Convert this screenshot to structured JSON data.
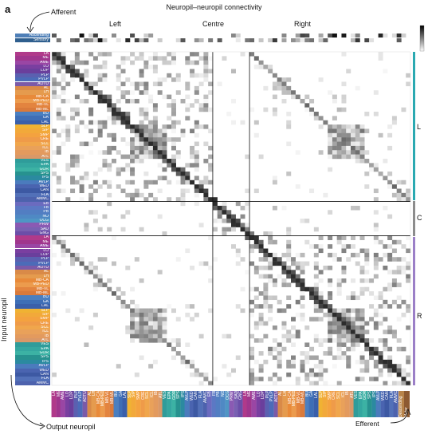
{
  "panel_letter": "a",
  "title": "Neuropil–neuropil connectivity",
  "sections": {
    "left": "Left",
    "centre": "Centre",
    "right": "Right"
  },
  "afferent": "Afferent",
  "efferent": "Efferent",
  "input_axis": "Input neuropil",
  "output_axis": "Output neuropil",
  "side_groups": [
    "L",
    "C",
    "R"
  ],
  "afferent_rows": [
    "Ascending",
    "Sensory"
  ],
  "efferent_cols": [
    "Descending",
    "Motor"
  ],
  "colors": {
    "grid_dark": "#111111",
    "teal_bar": "#2aa9b1",
    "grey_bar": "#8c8c8c",
    "purple_bar": "#9b7fc7"
  },
  "neuropils_left": [
    "LA",
    "ME",
    "AME",
    "LO",
    "LOP",
    "PLP",
    "PVLP",
    "AOTU",
    "AL",
    "LH",
    "MB-CA",
    "MB-PED",
    "MB-VL",
    "MB-ML",
    "BU",
    "GA",
    "LAL",
    "SLP",
    "SIP",
    "SMP",
    "CRE",
    "SCL",
    "ICL",
    "IB",
    "ATL",
    "VES",
    "EPA",
    "GOR",
    "SPS",
    "IPS",
    "AVLP",
    "WED",
    "CAN",
    "FLA",
    "AMMC"
  ],
  "neuropils_centre": [
    "EB",
    "FB",
    "PB",
    "NO",
    "OCG",
    "PRW",
    "SAD",
    "GNG"
  ],
  "neuropils_right": [
    "LA",
    "ME",
    "AME",
    "LO",
    "LOP",
    "PLP",
    "PVLP",
    "AOTU",
    "AL",
    "LH",
    "MB-CA",
    "MB-PED",
    "MB-VL",
    "MB-ML",
    "BU",
    "GA",
    "LAL",
    "SLP",
    "SIP",
    "SMP",
    "CRE",
    "SCL",
    "ICL",
    "IB",
    "ATL",
    "VES",
    "EPA",
    "GOR",
    "SPS",
    "IPS",
    "AVLP",
    "WED",
    "CAN",
    "FLA",
    "AMMC"
  ]
}
